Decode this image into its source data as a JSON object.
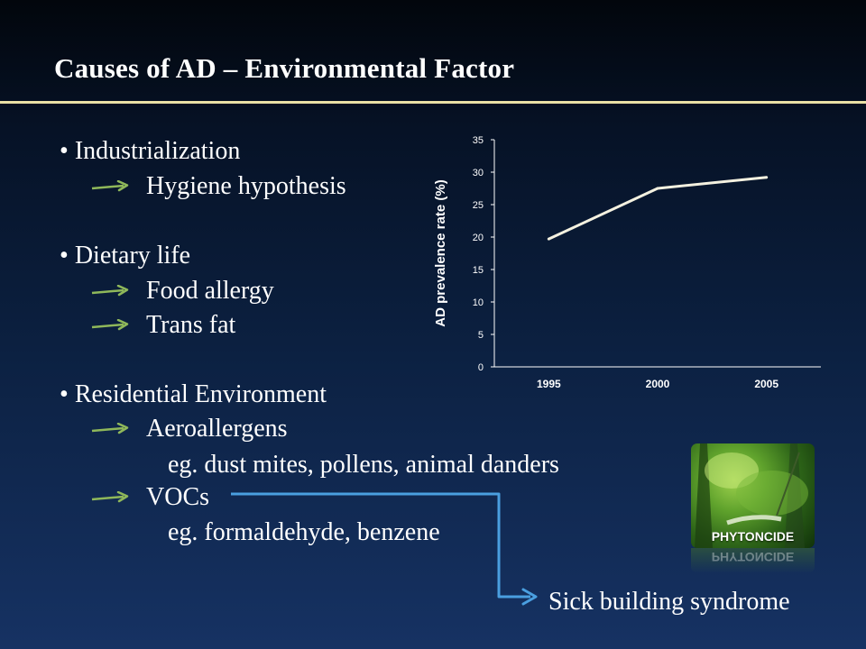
{
  "slide": {
    "title": "Causes of AD – Environmental Factor"
  },
  "bullets": [
    {
      "label": "Industrialization",
      "subs": [
        {
          "label": "Hygiene hypothesis",
          "eg": ""
        }
      ]
    },
    {
      "label": "Dietary life",
      "subs": [
        {
          "label": "Food allergy",
          "eg": ""
        },
        {
          "label": "Trans fat",
          "eg": ""
        }
      ]
    },
    {
      "label": "Residential Environment",
      "subs": [
        {
          "label": "Aeroallergens",
          "eg": "eg. dust mites, pollens, animal danders"
        },
        {
          "label": "VOCs",
          "eg": "eg. formaldehyde, benzene"
        }
      ]
    }
  ],
  "bullet_char": "•",
  "colors": {
    "arrow": "#8fb85a",
    "connector": "#4a9fe0",
    "title_rule": "#e9e0a5",
    "line": "#f4f1e0"
  },
  "result": "Sick building syndrome",
  "photo": {
    "label": "PHYTONCIDE",
    "reflection": "PHYTONCIDE"
  },
  "chart_data": {
    "type": "line",
    "categories": [
      "1995",
      "2000",
      "2005"
    ],
    "series": [
      {
        "values": [
          19.7,
          27.5,
          29.2
        ]
      }
    ],
    "ylabel": "AD prevalence rate (%)",
    "xlabel": "",
    "ylim": [
      0,
      35
    ],
    "yticks": [
      "0",
      "5",
      "10",
      "15",
      "20",
      "25",
      "30",
      "35"
    ],
    "grid": false,
    "legend": "none"
  }
}
